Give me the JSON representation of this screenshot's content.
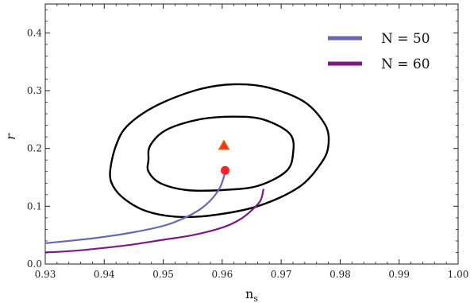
{
  "chart_data": {
    "type": "line",
    "xlabel": "n",
    "xlabel_sub": "s",
    "ylabel": "r",
    "xlim": [
      0.93,
      1.0
    ],
    "ylim": [
      0.0,
      0.45
    ],
    "xticks": [
      "0.93",
      "0.94",
      "0.95",
      "0.96",
      "0.97",
      "0.98",
      "0.99",
      "1.00"
    ],
    "yticks": [
      "0.0",
      "0.1",
      "0.2",
      "0.3",
      "0.4"
    ],
    "grid": false,
    "legend_position": "top-right",
    "series": [
      {
        "name": "N = 50",
        "color": "#6666b2",
        "points": [
          [
            0.93,
            0.036
          ],
          [
            0.935,
            0.041
          ],
          [
            0.94,
            0.047
          ],
          [
            0.945,
            0.055
          ],
          [
            0.95,
            0.066
          ],
          [
            0.953,
            0.077
          ],
          [
            0.956,
            0.093
          ],
          [
            0.958,
            0.11
          ],
          [
            0.9595,
            0.13
          ],
          [
            0.9602,
            0.148
          ],
          [
            0.9605,
            0.16
          ]
        ]
      },
      {
        "name": "N = 60",
        "color": "#7a1a82",
        "points": [
          [
            0.93,
            0.02
          ],
          [
            0.935,
            0.023
          ],
          [
            0.94,
            0.028
          ],
          [
            0.945,
            0.034
          ],
          [
            0.95,
            0.042
          ],
          [
            0.955,
            0.05
          ],
          [
            0.96,
            0.063
          ],
          [
            0.963,
            0.077
          ],
          [
            0.965,
            0.093
          ],
          [
            0.9665,
            0.11
          ],
          [
            0.967,
            0.13
          ]
        ]
      }
    ],
    "contours": [
      {
        "level": "inner",
        "color": "#000000",
        "points": [
          [
            0.9475,
            0.18
          ],
          [
            0.9478,
            0.205
          ],
          [
            0.9505,
            0.232
          ],
          [
            0.956,
            0.25
          ],
          [
            0.962,
            0.255
          ],
          [
            0.967,
            0.25
          ],
          [
            0.9715,
            0.225
          ],
          [
            0.972,
            0.19
          ],
          [
            0.9708,
            0.16
          ],
          [
            0.966,
            0.135
          ],
          [
            0.96,
            0.128
          ],
          [
            0.954,
            0.128
          ],
          [
            0.9495,
            0.14
          ],
          [
            0.9475,
            0.16
          ]
        ]
      },
      {
        "level": "outer",
        "color": "#000000",
        "points": [
          [
            0.941,
            0.16
          ],
          [
            0.942,
            0.205
          ],
          [
            0.944,
            0.24
          ],
          [
            0.949,
            0.275
          ],
          [
            0.956,
            0.302
          ],
          [
            0.962,
            0.311
          ],
          [
            0.968,
            0.305
          ],
          [
            0.974,
            0.28
          ],
          [
            0.9775,
            0.24
          ],
          [
            0.978,
            0.205
          ],
          [
            0.9768,
            0.175
          ],
          [
            0.973,
            0.133
          ],
          [
            0.966,
            0.1
          ],
          [
            0.958,
            0.084
          ],
          [
            0.952,
            0.082
          ],
          [
            0.947,
            0.092
          ],
          [
            0.9435,
            0.112
          ],
          [
            0.9415,
            0.135
          ]
        ]
      }
    ],
    "markers": [
      {
        "shape": "circle",
        "x": 0.9605,
        "y": 0.162,
        "color": "#ff2222"
      },
      {
        "shape": "triangle",
        "x": 0.9603,
        "y": 0.205,
        "color": "#ff3322",
        "edge_color": "#d07000"
      }
    ]
  }
}
